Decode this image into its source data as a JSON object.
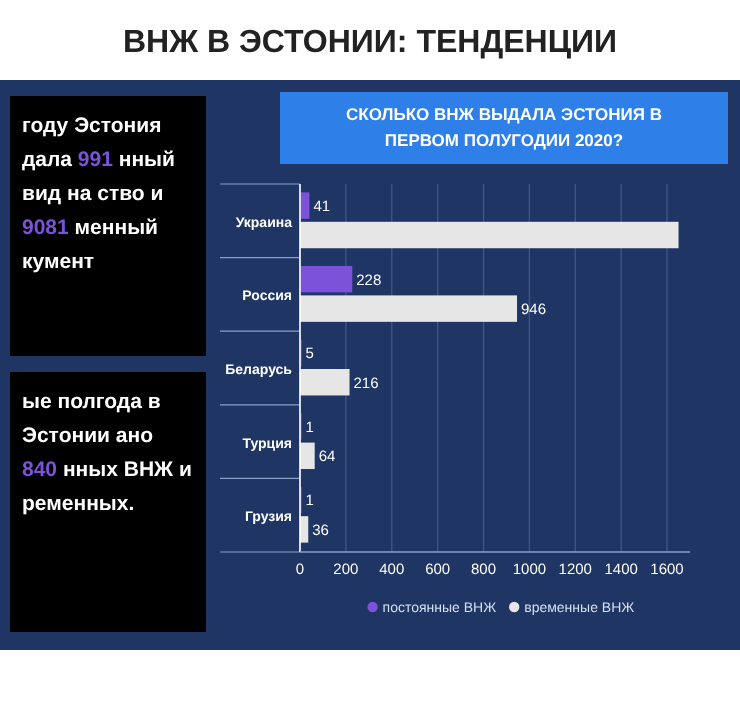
{
  "chart_data": {
    "type": "bar",
    "orientation": "horizontal",
    "title": "ВНЖ В ЭСТОНИИ: ТЕНДЕНЦИИ",
    "subtitle": "СКОЛЬКО ВНЖ ВЫДАЛА ЭСТОНИЯ В ПЕРВОМ ПОЛУГОДИИ 2020?",
    "categories": [
      "Украина",
      "Россия",
      "Беларусь",
      "Турция",
      "Грузия"
    ],
    "series": [
      {
        "name": "постоянные ВНЖ",
        "color": "#7b52d9",
        "values": [
          41,
          228,
          5,
          1,
          1
        ],
        "value_labels": [
          "41",
          "228",
          "5",
          "1",
          "1"
        ]
      },
      {
        "name": "временные ВНЖ",
        "color": "#e6e6e6",
        "values": [
          1650,
          946,
          216,
          64,
          36
        ],
        "value_labels": [
          null,
          "946",
          "216",
          "64",
          "36"
        ]
      }
    ],
    "xlim": [
      0,
      1700
    ],
    "xticks": [
      0,
      200,
      400,
      600,
      800,
      1000,
      1200,
      1400,
      1600
    ],
    "grid": "x",
    "legend": "bottom",
    "annotations": [
      "году Эстония дала 991 нный вид на ство и 9081 менный кумент",
      "ые полгода в Эстонии ано 840 нных ВНЖ и ременных."
    ]
  }
}
